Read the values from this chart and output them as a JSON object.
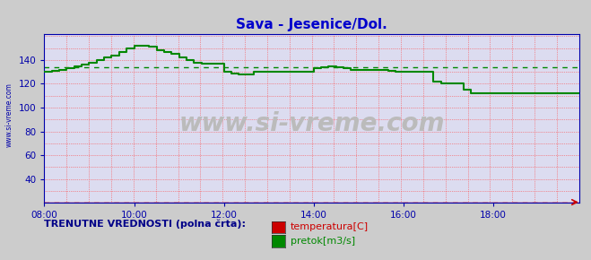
{
  "title": "Sava - Jesenice/Dol.",
  "title_color": "#0000cc",
  "title_fontsize": 11,
  "bg_color": "#cccccc",
  "plot_bg_color": "#dcdcf0",
  "xlim": [
    0,
    143
  ],
  "ylim": [
    20,
    162
  ],
  "yticks": [
    40,
    60,
    80,
    100,
    120,
    140
  ],
  "xtick_labels": [
    "08:00",
    "10:00",
    "12:00",
    "14:00",
    "16:00",
    "18:00"
  ],
  "xtick_positions": [
    0,
    24,
    48,
    72,
    96,
    120
  ],
  "grid_color": "#ff4444",
  "tick_color": "#0000aa",
  "spine_color": "#0000aa",
  "watermark_text": "www.si-vreme.com",
  "watermark_color": "#bbbbbb",
  "side_label": "www.si-vreme.com",
  "side_label_color": "#0000aa",
  "temp_color": "#cc0000",
  "flow_color": "#008800",
  "avg_flow_color": "#008800",
  "avg_temp_color": "#cc0000",
  "arrow_color": "#cc0000",
  "legend_label1": "temperatura[C]",
  "legend_label2": "pretok[m3/s]",
  "legend_color1": "#cc0000",
  "legend_color2": "#008800",
  "legend_text": "TRENUTNE VREDNOSTI (polna črta):",
  "flow_data": [
    130,
    130,
    131,
    131,
    132,
    132,
    133,
    133,
    135,
    135,
    136,
    136,
    138,
    138,
    140,
    140,
    142,
    142,
    144,
    144,
    147,
    147,
    150,
    150,
    152,
    152,
    152,
    152,
    151,
    151,
    148,
    148,
    147,
    147,
    145,
    145,
    142,
    142,
    140,
    140,
    138,
    138,
    137,
    137,
    137,
    137,
    137,
    137,
    130,
    130,
    129,
    129,
    128,
    128,
    128,
    128,
    130,
    130,
    130,
    130,
    130,
    130,
    130,
    130,
    130,
    130,
    130,
    130,
    130,
    130,
    130,
    130,
    133,
    133,
    134,
    134,
    135,
    135,
    134,
    134,
    133,
    133,
    132,
    132,
    132,
    132,
    132,
    132,
    132,
    132,
    132,
    132,
    131,
    131,
    130,
    130,
    130,
    130,
    130,
    130,
    130,
    130,
    130,
    130,
    122,
    122,
    120,
    120,
    120,
    120,
    120,
    120,
    115,
    115,
    112,
    112,
    112,
    112,
    112,
    112,
    112,
    112,
    112,
    112,
    112,
    112,
    112,
    112,
    112,
    112,
    112,
    112,
    112,
    112,
    112,
    112,
    112,
    112,
    112,
    112,
    112,
    112,
    112,
    112
  ],
  "temp_data_val": 20.5,
  "avg_flow_val": 134,
  "avg_temp_val": 20.5,
  "n_points": 144,
  "n_xgrid": 25,
  "n_ygrid": 15
}
